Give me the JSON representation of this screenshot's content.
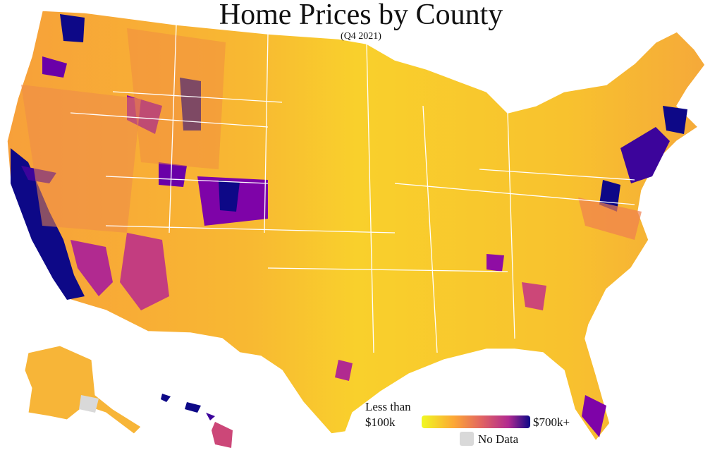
{
  "header": {
    "title": "Home Prices by County",
    "subtitle": "(Q4 2021)"
  },
  "legend": {
    "low_label": [
      "Less than",
      "$100k"
    ],
    "high_label": "$700k+",
    "no_data_label": "No Data"
  }
}
